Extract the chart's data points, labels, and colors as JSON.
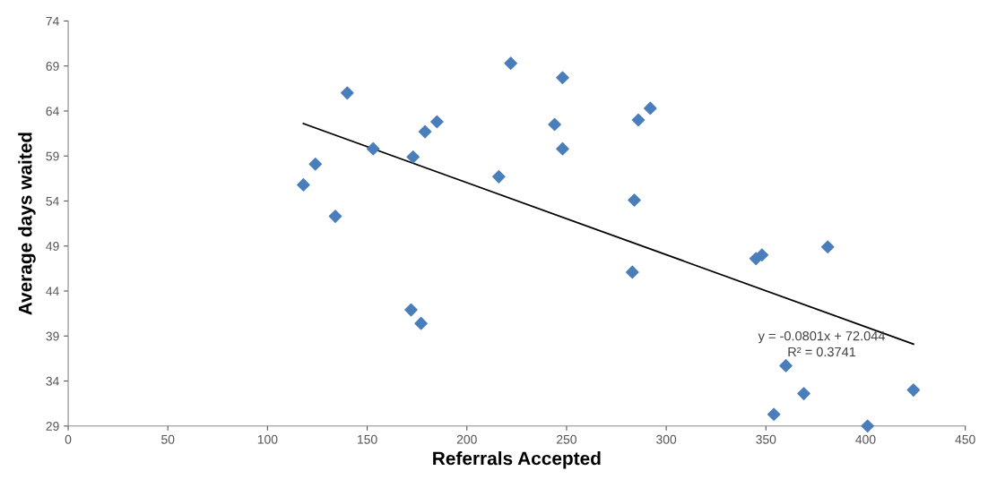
{
  "chart_data": {
    "type": "scatter",
    "xlabel": "Referrals Accepted",
    "ylabel": "Average days waited",
    "xlim": [
      0,
      450
    ],
    "xticks": [
      0,
      50,
      100,
      150,
      200,
      250,
      300,
      350,
      400,
      450
    ],
    "ylim": [
      29,
      74
    ],
    "yticks": [
      29,
      34,
      39,
      44,
      49,
      54,
      59,
      64,
      69,
      74
    ],
    "grid": false,
    "legend": false,
    "series": [
      {
        "color": "#4a7ebb",
        "marker": "diamond",
        "x": [
          118,
          124,
          134,
          140,
          153,
          172,
          173,
          177,
          179,
          185,
          216,
          222,
          244,
          248,
          248,
          283,
          284,
          286,
          292,
          345,
          348,
          354,
          360,
          369,
          381,
          401,
          424
        ],
        "values": [
          55.8,
          58.1,
          52.3,
          66.0,
          59.8,
          41.9,
          58.9,
          40.4,
          61.7,
          62.8,
          56.7,
          69.3,
          62.5,
          67.7,
          59.8,
          46.1,
          54.1,
          63.0,
          64.3,
          47.6,
          48.0,
          30.3,
          35.7,
          32.6,
          48.9,
          29.0,
          33.0
        ]
      },
      {
        "type": "line",
        "color": "#000000",
        "marker": "none",
        "x": [
          118,
          424
        ],
        "values": [
          62.6,
          38.1
        ]
      }
    ],
    "annotations": [
      "y = -0.0801x + 72.044\nR² = 0.3741"
    ]
  }
}
